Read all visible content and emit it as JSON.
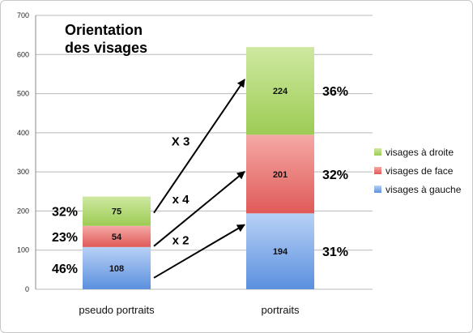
{
  "colors": {
    "green_top": "#cfe8a1",
    "green_bottom": "#9ccc54",
    "red_top": "#f5a9a6",
    "red_bottom": "#df5a57",
    "blue_top": "#b8d1f6",
    "blue_bottom": "#5b90de",
    "grid": "#b9b9b9",
    "axis_text": "#222222"
  },
  "chart_data": {
    "type": "bar",
    "stacked": true,
    "title": [
      "Orientation",
      "des visages"
    ],
    "xlabel": "",
    "ylabel": "",
    "categories": [
      "pseudo portraits",
      "portraits"
    ],
    "ylim": [
      0,
      700
    ],
    "yticks": [
      "0",
      "100",
      "200",
      "300",
      "400",
      "500",
      "600",
      "700"
    ],
    "grid": true,
    "legend_position": "right",
    "series": [
      {
        "name": "visages à gauche",
        "values": [
          108,
          194
        ],
        "color": "blue",
        "percents": [
          "46%",
          "31%"
        ]
      },
      {
        "name": "visages de face",
        "values": [
          54,
          201
        ],
        "color": "red",
        "percents": [
          "23%",
          "32%"
        ]
      },
      {
        "name": "visages à droite",
        "values": [
          75,
          224
        ],
        "color": "green",
        "percents": [
          "32%",
          "36%"
        ]
      }
    ],
    "arrows": [
      {
        "label": "X 3",
        "from_series": "visages à droite",
        "to_series": "visages à droite"
      },
      {
        "label": "x 4",
        "from_series": "visages de face",
        "to_series": "visages de face"
      },
      {
        "label": "x 2",
        "from_series": "visages à gauche",
        "to_series": "visages à gauche"
      }
    ]
  }
}
